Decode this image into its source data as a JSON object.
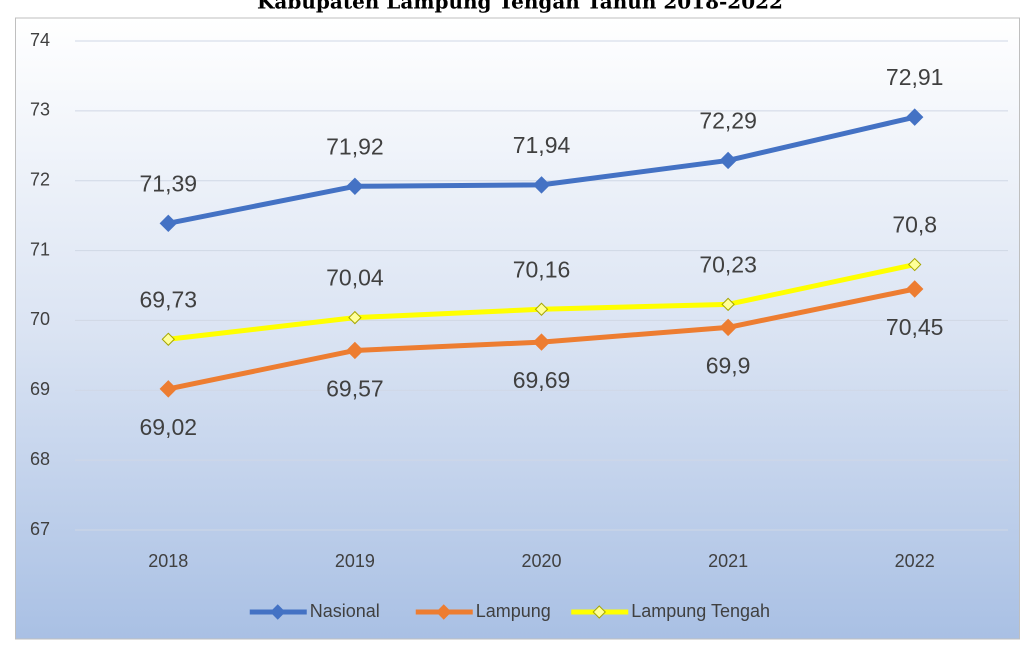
{
  "chart_data": {
    "type": "line",
    "title": "Kabupaten Lampung Tengah Tahun 2018-2022",
    "categories": [
      "2018",
      "2019",
      "2020",
      "2021",
      "2022"
    ],
    "series": [
      {
        "name": "Nasional",
        "color": "#4472c4",
        "label_position": "above",
        "values": [
          71.39,
          71.92,
          71.94,
          72.29,
          72.91
        ],
        "value_labels": [
          "71,39",
          "71,92",
          "71,94",
          "72,29",
          "72,91"
        ]
      },
      {
        "name": "Lampung",
        "color": "#ed7d31",
        "label_position": "below",
        "values": [
          69.02,
          69.57,
          69.69,
          69.9,
          70.45
        ],
        "value_labels": [
          "69,02",
          "69,57",
          "69,69",
          "69,9",
          "70,45"
        ]
      },
      {
        "name": "Lampung Tengah",
        "color": "#ffff00",
        "label_position": "above",
        "values": [
          69.73,
          70.04,
          70.16,
          70.23,
          70.8
        ],
        "value_labels": [
          "69,73",
          "70,04",
          "70,16",
          "70,23",
          "70,8"
        ]
      }
    ],
    "ylim": [
      67,
      74
    ],
    "yticks": [
      67,
      68,
      69,
      70,
      71,
      72,
      73,
      74
    ],
    "grid": true,
    "legend": "bottom"
  }
}
